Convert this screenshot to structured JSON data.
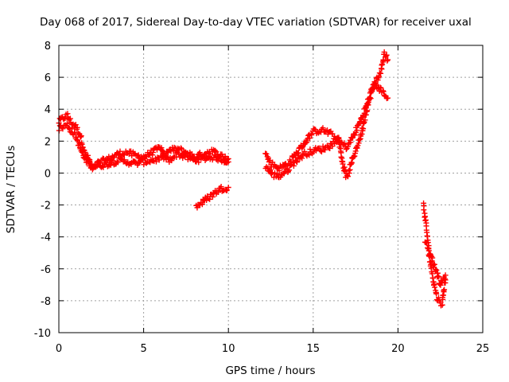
{
  "chart_data": {
    "type": "scatter",
    "title": "Day 068 of 2017, Sidereal Day-to-day VTEC variation (SDTVAR) for receiver uxal",
    "xlabel": "GPS time / hours",
    "ylabel": "SDTVAR / TECUs",
    "xlim": [
      0,
      25
    ],
    "ylim": [
      -10,
      8
    ],
    "xticks": [
      0,
      5,
      10,
      15,
      20,
      25
    ],
    "yticks": [
      -10,
      -8,
      -6,
      -4,
      -2,
      0,
      2,
      4,
      6,
      8
    ],
    "grid": true,
    "marker": "+",
    "series": [
      {
        "name": "SDTVAR",
        "color": "#ff0000",
        "segments": [
          [
            [
              0.0,
              3.2
            ],
            [
              0.3,
              3.5
            ],
            [
              0.5,
              3.6
            ],
            [
              0.7,
              3.2
            ],
            [
              1.0,
              2.9
            ],
            [
              1.3,
              2.3
            ],
            [
              1.5,
              1.3
            ],
            [
              1.8,
              0.8
            ],
            [
              2.0,
              0.2
            ],
            [
              2.3,
              0.6
            ],
            [
              2.7,
              0.8
            ],
            [
              3.0,
              0.9
            ],
            [
              3.5,
              1.2
            ],
            [
              4.0,
              1.3
            ],
            [
              4.5,
              1.1
            ],
            [
              5.0,
              1.0
            ],
            [
              5.5,
              1.3
            ],
            [
              6.0,
              1.6
            ],
            [
              6.2,
              1.0
            ],
            [
              6.5,
              0.8
            ],
            [
              7.0,
              1.2
            ],
            [
              7.5,
              1.0
            ],
            [
              8.0,
              0.8
            ],
            [
              8.5,
              0.9
            ],
            [
              9.0,
              1.0
            ],
            [
              9.5,
              0.9
            ],
            [
              10.0,
              0.7
            ]
          ],
          [
            [
              0.0,
              2.8
            ],
            [
              0.5,
              3.0
            ],
            [
              1.0,
              2.3
            ],
            [
              1.5,
              0.9
            ],
            [
              2.0,
              0.4
            ],
            [
              2.5,
              0.5
            ],
            [
              3.0,
              0.6
            ],
            [
              3.5,
              0.8
            ],
            [
              4.0,
              0.7
            ],
            [
              4.5,
              0.6
            ],
            [
              5.0,
              0.7
            ],
            [
              5.5,
              0.8
            ],
            [
              6.0,
              0.9
            ],
            [
              6.5,
              1.4
            ],
            [
              7.0,
              1.5
            ],
            [
              7.5,
              1.3
            ],
            [
              8.0,
              1.0
            ],
            [
              8.5,
              1.2
            ],
            [
              9.0,
              1.4
            ],
            [
              9.5,
              1.1
            ],
            [
              10.0,
              0.9
            ]
          ],
          [
            [
              8.1,
              -2.1
            ],
            [
              8.5,
              -1.8
            ],
            [
              9.0,
              -1.4
            ],
            [
              9.5,
              -1.0
            ],
            [
              10.0,
              -0.9
            ]
          ],
          [
            [
              12.2,
              1.2
            ],
            [
              12.5,
              0.6
            ],
            [
              13.0,
              0.3
            ],
            [
              13.5,
              0.6
            ],
            [
              14.0,
              1.2
            ],
            [
              14.5,
              1.9
            ],
            [
              15.0,
              2.6
            ],
            [
              15.5,
              2.7
            ],
            [
              16.0,
              2.5
            ],
            [
              16.5,
              2.0
            ],
            [
              17.0,
              1.6
            ],
            [
              17.5,
              2.6
            ],
            [
              18.0,
              3.8
            ],
            [
              18.5,
              5.3
            ],
            [
              19.0,
              6.4
            ],
            [
              19.2,
              7.5
            ],
            [
              19.4,
              7.1
            ]
          ],
          [
            [
              12.2,
              0.4
            ],
            [
              12.6,
              -0.1
            ],
            [
              13.0,
              -0.2
            ],
            [
              13.5,
              0.2
            ],
            [
              14.0,
              0.8
            ],
            [
              14.5,
              1.2
            ],
            [
              15.0,
              1.4
            ],
            [
              15.5,
              1.5
            ],
            [
              16.0,
              1.7
            ],
            [
              16.5,
              2.2
            ],
            [
              16.8,
              0.3
            ],
            [
              17.0,
              -0.3
            ],
            [
              17.3,
              0.8
            ],
            [
              17.8,
              2.3
            ],
            [
              18.2,
              4.2
            ],
            [
              18.6,
              5.6
            ],
            [
              19.0,
              5.2
            ],
            [
              19.4,
              4.7
            ]
          ],
          [
            [
              21.5,
              -2.0
            ],
            [
              21.7,
              -3.7
            ],
            [
              21.9,
              -5.6
            ],
            [
              22.1,
              -6.8
            ],
            [
              22.3,
              -7.8
            ],
            [
              22.6,
              -8.2
            ],
            [
              22.8,
              -6.7
            ]
          ],
          [
            [
              21.6,
              -4.2
            ],
            [
              21.9,
              -5.0
            ],
            [
              22.2,
              -6.0
            ],
            [
              22.5,
              -7.0
            ],
            [
              22.8,
              -6.4
            ]
          ]
        ]
      }
    ]
  }
}
